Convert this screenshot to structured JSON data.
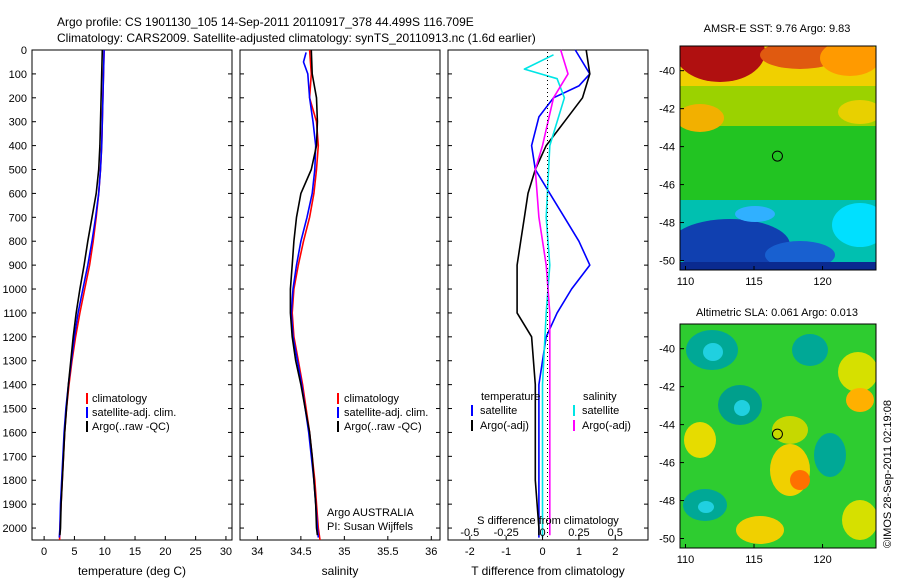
{
  "title_line1": "Argo profile: CS 1901130_105 14-Sep-2011 20110917_378 44.499S 116.709E",
  "title_line2": "Climatology: CARS2009. Satellite-adjusted climatology: synTS_20110913.nc (1.6d earlier)",
  "credit": "©IMOS 28-Sep-2011 02:19:08",
  "colors": {
    "red": "#ff0000",
    "blue": "#0000ff",
    "black": "#000000",
    "cyan": "#00e5e5",
    "magenta": "#ff00ff"
  },
  "depth_ticks": [
    "0",
    "100",
    "200",
    "300",
    "400",
    "500",
    "600",
    "700",
    "800",
    "900",
    "1000",
    "1100",
    "1200",
    "1300",
    "1400",
    "1500",
    "1600",
    "1700",
    "1800",
    "1900",
    "2000"
  ],
  "legend_clim": [
    "climatology",
    "satellite-adj. clim.",
    "Argo(..raw -QC)"
  ],
  "legend_diff": {
    "temperature_header": "temperature",
    "salinity_header": "salinity",
    "satellite": "satellite",
    "argo": "Argo(-adj)"
  },
  "annotation": {
    "line1": "Argo AUSTRALIA",
    "line2": "PI: Susan Wijffels"
  },
  "chart_data": [
    {
      "type": "line",
      "xlabel": "temperature (deg C)",
      "xticks": [
        "0",
        "5",
        "10",
        "15",
        "20",
        "25",
        "30"
      ],
      "xlim": [
        -2,
        31
      ],
      "ylim": [
        2050,
        0
      ],
      "series": [
        {
          "name": "climatology",
          "color": "red",
          "points": [
            [
              9.9,
              0
            ],
            [
              9.8,
              100
            ],
            [
              9.7,
              200
            ],
            [
              9.6,
              300
            ],
            [
              9.5,
              400
            ],
            [
              9.3,
              500
            ],
            [
              9.0,
              600
            ],
            [
              8.6,
              700
            ],
            [
              8.1,
              800
            ],
            [
              7.5,
              900
            ],
            [
              6.7,
              1000
            ],
            [
              5.9,
              1100
            ],
            [
              5.2,
              1200
            ],
            [
              4.6,
              1300
            ],
            [
              4.1,
              1400
            ],
            [
              3.7,
              1500
            ],
            [
              3.4,
              1600
            ],
            [
              3.2,
              1700
            ],
            [
              3.0,
              1800
            ],
            [
              2.8,
              1900
            ],
            [
              2.6,
              2000
            ],
            [
              2.55,
              2050
            ]
          ]
        },
        {
          "name": "satellite-adj. clim.",
          "color": "blue",
          "points": [
            [
              9.9,
              0
            ],
            [
              9.8,
              100
            ],
            [
              9.7,
              200
            ],
            [
              9.6,
              300
            ],
            [
              9.5,
              400
            ],
            [
              9.3,
              500
            ],
            [
              9.0,
              600
            ],
            [
              8.5,
              700
            ],
            [
              7.9,
              800
            ],
            [
              7.2,
              900
            ],
            [
              6.4,
              1000
            ],
            [
              5.6,
              1100
            ],
            [
              5.0,
              1200
            ],
            [
              4.5,
              1300
            ],
            [
              4.0,
              1400
            ],
            [
              3.6,
              1500
            ],
            [
              3.3,
              1600
            ],
            [
              3.1,
              1700
            ],
            [
              2.9,
              1800
            ],
            [
              2.7,
              1900
            ],
            [
              2.6,
              2000
            ],
            [
              2.5,
              2040
            ]
          ]
        },
        {
          "name": "Argo(..raw -QC)",
          "color": "black",
          "points": [
            [
              9.6,
              0
            ],
            [
              9.5,
              100
            ],
            [
              9.4,
              200
            ],
            [
              9.3,
              300
            ],
            [
              9.2,
              400
            ],
            [
              9.0,
              500
            ],
            [
              8.6,
              600
            ],
            [
              7.9,
              700
            ],
            [
              7.2,
              800
            ],
            [
              6.6,
              900
            ],
            [
              5.9,
              1000
            ],
            [
              5.3,
              1100
            ],
            [
              4.8,
              1200
            ],
            [
              4.4,
              1300
            ],
            [
              4.0,
              1400
            ],
            [
              3.7,
              1500
            ],
            [
              3.4,
              1600
            ],
            [
              3.2,
              1700
            ],
            [
              3.0,
              1800
            ],
            [
              2.8,
              1900
            ],
            [
              2.7,
              2000
            ],
            [
              2.6,
              2030
            ]
          ]
        }
      ]
    },
    {
      "type": "line",
      "xlabel": "salinity",
      "xticks": [
        "34",
        "34.5",
        "35",
        "35.5",
        "36"
      ],
      "xlim": [
        33.8,
        36.1
      ],
      "ylim": [
        2050,
        0
      ],
      "series": [
        {
          "name": "climatology",
          "color": "red",
          "points": [
            [
              34.6,
              0
            ],
            [
              34.62,
              100
            ],
            [
              34.6,
              200
            ],
            [
              34.68,
              300
            ],
            [
              34.7,
              400
            ],
            [
              34.68,
              500
            ],
            [
              34.65,
              600
            ],
            [
              34.6,
              700
            ],
            [
              34.53,
              800
            ],
            [
              34.47,
              900
            ],
            [
              34.42,
              1000
            ],
            [
              34.4,
              1100
            ],
            [
              34.42,
              1200
            ],
            [
              34.47,
              1300
            ],
            [
              34.52,
              1400
            ],
            [
              34.56,
              1500
            ],
            [
              34.6,
              1600
            ],
            [
              34.63,
              1700
            ],
            [
              34.66,
              1800
            ],
            [
              34.68,
              1900
            ],
            [
              34.7,
              2000
            ],
            [
              34.72,
              2050
            ]
          ]
        },
        {
          "name": "satellite-adj. clim.",
          "color": "blue",
          "points": [
            [
              34.56,
              10
            ],
            [
              34.53,
              50
            ],
            [
              34.58,
              100
            ],
            [
              34.6,
              200
            ],
            [
              34.64,
              300
            ],
            [
              34.67,
              400
            ],
            [
              34.66,
              500
            ],
            [
              34.63,
              600
            ],
            [
              34.57,
              700
            ],
            [
              34.5,
              800
            ],
            [
              34.45,
              900
            ],
            [
              34.41,
              1000
            ],
            [
              34.39,
              1100
            ],
            [
              34.41,
              1200
            ],
            [
              34.46,
              1300
            ],
            [
              34.51,
              1400
            ],
            [
              34.55,
              1500
            ],
            [
              34.59,
              1600
            ],
            [
              34.62,
              1700
            ],
            [
              34.65,
              1800
            ],
            [
              34.67,
              1900
            ],
            [
              34.69,
              2000
            ],
            [
              34.7,
              2040
            ]
          ]
        },
        {
          "name": "Argo(..raw -QC)",
          "color": "black",
          "points": [
            [
              34.62,
              0
            ],
            [
              34.63,
              100
            ],
            [
              34.68,
              200
            ],
            [
              34.69,
              300
            ],
            [
              34.68,
              400
            ],
            [
              34.62,
              500
            ],
            [
              34.5,
              600
            ],
            [
              34.45,
              700
            ],
            [
              34.42,
              800
            ],
            [
              34.4,
              900
            ],
            [
              34.38,
              1000
            ],
            [
              34.38,
              1100
            ],
            [
              34.4,
              1200
            ],
            [
              34.44,
              1300
            ],
            [
              34.5,
              1400
            ],
            [
              34.55,
              1500
            ],
            [
              34.6,
              1600
            ],
            [
              34.63,
              1700
            ],
            [
              34.65,
              1800
            ],
            [
              34.67,
              1900
            ],
            [
              34.68,
              2000
            ],
            [
              34.69,
              2030
            ]
          ]
        }
      ]
    },
    {
      "type": "line",
      "xlabel": "T difference from climatology",
      "xlabel_top": "S difference from climatology",
      "xticks": [
        "-2",
        "-1",
        "0",
        "1",
        "2"
      ],
      "xticks_top": [
        "-0.5",
        "-0.25",
        "0",
        "0.25",
        "0.5"
      ],
      "xlim": [
        -2.6,
        2.9
      ],
      "ylim": [
        2050,
        0
      ],
      "series": [
        {
          "name": "temperature satellite",
          "color": "blue",
          "points": [
            [
              0.9,
              0
            ],
            [
              1.3,
              100
            ],
            [
              1.0,
              150
            ],
            [
              0.3,
              200
            ],
            [
              -0.1,
              280
            ],
            [
              -0.3,
              400
            ],
            [
              -0.2,
              500
            ],
            [
              0.2,
              600
            ],
            [
              0.6,
              700
            ],
            [
              1.0,
              800
            ],
            [
              1.3,
              900
            ],
            [
              0.8,
              1000
            ],
            [
              0.4,
              1100
            ],
            [
              0.1,
              1200
            ],
            [
              -0.1,
              1400
            ],
            [
              -0.1,
              1600
            ],
            [
              -0.1,
              1800
            ],
            [
              -0.1,
              2000
            ],
            [
              -0.1,
              2040
            ]
          ]
        },
        {
          "name": "temperature Argo(-adj)",
          "color": "black",
          "points": [
            [
              1.2,
              0
            ],
            [
              1.3,
              100
            ],
            [
              1.1,
              200
            ],
            [
              0.6,
              300
            ],
            [
              0.1,
              400
            ],
            [
              -0.2,
              500
            ],
            [
              -0.4,
              600
            ],
            [
              -0.5,
              700
            ],
            [
              -0.6,
              800
            ],
            [
              -0.7,
              900
            ],
            [
              -0.7,
              1000
            ],
            [
              -0.7,
              1100
            ],
            [
              -0.3,
              1200
            ],
            [
              -0.2,
              1400
            ],
            [
              -0.2,
              1600
            ],
            [
              -0.2,
              1800
            ],
            [
              -0.1,
              2000
            ],
            [
              -0.1,
              2030
            ]
          ]
        },
        {
          "name": "salinity satellite",
          "color": "cyan",
          "points": [
            [
              0.3,
              20
            ],
            [
              -0.5,
              80
            ],
            [
              0.4,
              120
            ],
            [
              0.6,
              200
            ],
            [
              0.2,
              400
            ],
            [
              0.1,
              700
            ],
            [
              0.2,
              900
            ],
            [
              0.1,
              1100
            ],
            [
              0.0,
              1400
            ],
            [
              0.0,
              1700
            ],
            [
              0.0,
              2000
            ],
            [
              0.0,
              2040
            ]
          ]
        },
        {
          "name": "salinity Argo(-adj)",
          "color": "magenta",
          "points": [
            [
              0.5,
              0
            ],
            [
              0.7,
              100
            ],
            [
              0.3,
              200
            ],
            [
              0.0,
              400
            ],
            [
              -0.2,
              500
            ],
            [
              -0.1,
              700
            ],
            [
              0.1,
              900
            ],
            [
              0.2,
              1100
            ],
            [
              0.2,
              1300
            ],
            [
              0.2,
              1500
            ],
            [
              0.2,
              1800
            ],
            [
              0.2,
              2000
            ],
            [
              0.2,
              2030
            ]
          ]
        }
      ]
    },
    {
      "type": "heatmap",
      "title": "AMSR-E SST: 9.76 Argo: 9.83",
      "xticks": [
        "110",
        "115",
        "120"
      ],
      "yticks": [
        "-40",
        "-42",
        "-44",
        "-46",
        "-48",
        "-50"
      ],
      "xlim": [
        109.6,
        123.9
      ],
      "ylim": [
        -50.5,
        -38.7
      ],
      "marker": [
        116.709,
        -44.499
      ]
    },
    {
      "type": "heatmap",
      "title": "Altimetric SLA: 0.061 Argo: 0.013",
      "xticks": [
        "110",
        "115",
        "120"
      ],
      "yticks": [
        "-40",
        "-42",
        "-44",
        "-46",
        "-48",
        "-50"
      ],
      "xlim": [
        109.6,
        123.9
      ],
      "ylim": [
        -50.5,
        -38.7
      ],
      "marker": [
        116.709,
        -44.499
      ]
    }
  ]
}
